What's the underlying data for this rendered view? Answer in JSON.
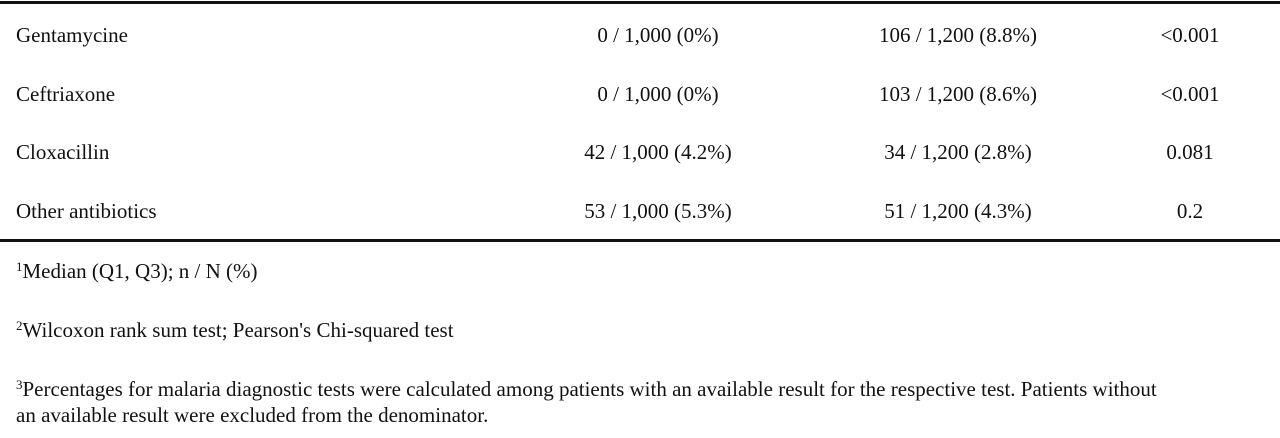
{
  "table": {
    "rows": [
      [
        "Gentamycine",
        "0 / 1,000 (0%)",
        "106 / 1,200 (8.8%)",
        "<0.001"
      ],
      [
        "Ceftriaxone",
        "0 / 1,000 (0%)",
        "103 / 1,200 (8.6%)",
        "<0.001"
      ],
      [
        "Cloxacillin",
        "42 / 1,000 (4.2%)",
        "34 / 1,200 (2.8%)",
        "0.081"
      ],
      [
        "Other antibiotics",
        "53 / 1,000 (5.3%)",
        "51 / 1,200 (4.3%)",
        "0.2"
      ]
    ]
  },
  "footnotes": [
    {
      "marker": "1",
      "text": "Median (Q1, Q3); n / N (%)"
    },
    {
      "marker": "2",
      "text": "Wilcoxon rank sum test; Pearson's Chi-squared test"
    },
    {
      "marker": "3",
      "text": "Percentages for malaria diagnostic tests were calculated among patients with an available result for the respective test. Patients without an available result were excluded from the denominator."
    }
  ]
}
